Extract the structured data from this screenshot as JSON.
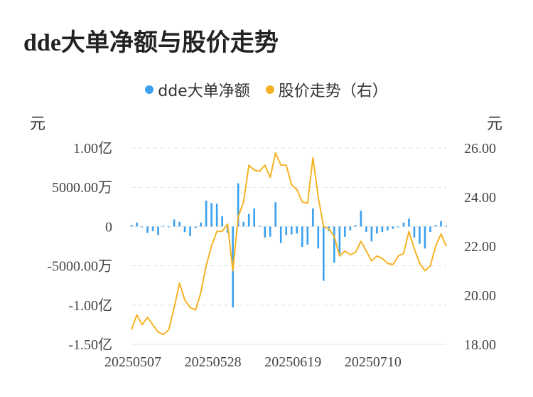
{
  "title": "dde大单净额与股价走势",
  "colors": {
    "bar": "#3aa0f0",
    "line": "#f5b324",
    "grid": "#e2e2e2"
  },
  "chart_data": {
    "type": "bar+line",
    "left_unit": "元",
    "right_unit": "元",
    "legend": [
      {
        "name": "dde大单净额",
        "color": "#3aa0f0"
      },
      {
        "name": "股价走势（右）",
        "color": "#f5b324"
      }
    ],
    "left_axis": {
      "ticks": [
        {
          "label": "1.00亿",
          "value": 10000
        },
        {
          "label": "5000.00万",
          "value": 5000
        },
        {
          "label": "0",
          "value": 0
        },
        {
          "label": "-5000.00万",
          "value": -5000
        },
        {
          "label": "-1.00亿",
          "value": -10000
        },
        {
          "label": "-1.50亿",
          "value": -15000
        }
      ],
      "range": [
        -15000,
        10000
      ],
      "unit_note": "values in 万元"
    },
    "right_axis": {
      "ticks": [
        {
          "label": "26.00",
          "value": 26
        },
        {
          "label": "24.00",
          "value": 24
        },
        {
          "label": "22.00",
          "value": 22
        },
        {
          "label": "20.00",
          "value": 20
        },
        {
          "label": "18.00",
          "value": 18
        }
      ],
      "range": [
        18,
        26
      ]
    },
    "x_labels": [
      {
        "label": "20250507",
        "index": 0
      },
      {
        "label": "20250528",
        "index": 15
      },
      {
        "label": "20250619",
        "index": 30
      },
      {
        "label": "20250710",
        "index": 45
      }
    ],
    "dde_values": [
      200,
      500,
      -100,
      -800,
      -600,
      -1100,
      100,
      -100,
      900,
      600,
      -700,
      -1200,
      -200,
      500,
      3300,
      3000,
      2900,
      1300,
      -800,
      -10300,
      5500,
      600,
      1600,
      2300,
      100,
      -1400,
      -1300,
      3100,
      -2100,
      -1100,
      -1000,
      -900,
      -2600,
      -2300,
      2300,
      -2800,
      -6900,
      -600,
      -4600,
      -3500,
      -1300,
      -500,
      200,
      2000,
      -700,
      -1900,
      -900,
      -700,
      -500,
      -300,
      -100,
      500,
      1000,
      -1400,
      -2200,
      -2800,
      -700,
      200,
      700,
      100
    ],
    "price_values": [
      18.6,
      19.2,
      18.8,
      19.1,
      18.8,
      18.5,
      18.4,
      18.6,
      19.5,
      20.5,
      19.8,
      19.5,
      19.4,
      20.1,
      21.2,
      22.0,
      22.6,
      22.6,
      22.9,
      21.0,
      23.2,
      23.8,
      25.3,
      25.1,
      25.05,
      25.3,
      24.8,
      25.8,
      25.3,
      25.3,
      24.5,
      24.3,
      23.8,
      23.75,
      25.6,
      24.0,
      22.8,
      22.7,
      22.4,
      21.6,
      21.8,
      21.65,
      21.75,
      22.2,
      21.8,
      21.4,
      21.6,
      21.5,
      21.3,
      21.25,
      21.6,
      21.7,
      22.6,
      21.9,
      21.3,
      21.0,
      21.2,
      22.0,
      22.5,
      22.0
    ]
  }
}
